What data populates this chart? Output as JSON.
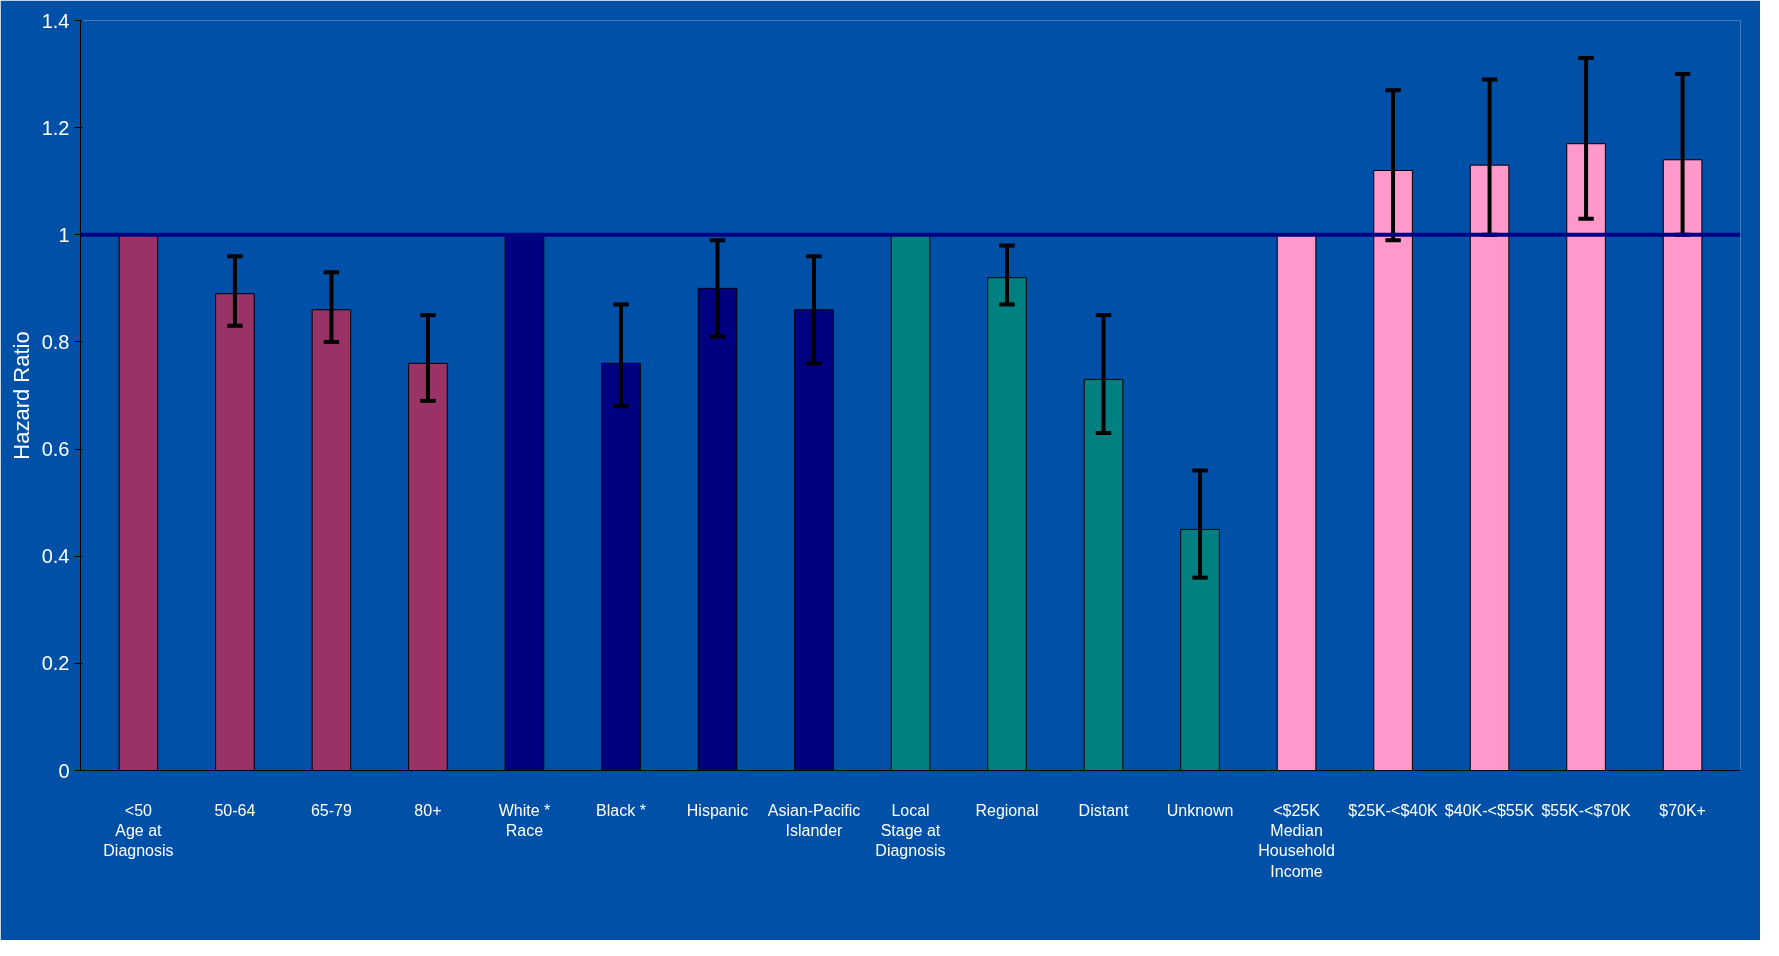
{
  "chart_data": {
    "type": "bar",
    "ylabel": "Hazard Ratio",
    "categories": [
      "<50\nAge at\nDiagnosis",
      "50-64",
      "65-79",
      "80+",
      "White *\nRace",
      "Black *",
      "Hispanic",
      "Asian-Pacific\nIslander",
      "Local\nStage at\nDiagnosis",
      "Regional",
      "Distant",
      "Unknown",
      "<$25K\nMedian\nHousehold\nIncome",
      "$25K-<$40K",
      "$40K-<$55K",
      "$55K-<$70K",
      "$70K+"
    ],
    "values": [
      1,
      0.89,
      0.86,
      0.76,
      1,
      0.76,
      0.9,
      0.86,
      1,
      0.92,
      0.73,
      0.45,
      1,
      1.12,
      1.13,
      1.17,
      1.14
    ],
    "errors": [
      null,
      [
        0.83,
        0.96
      ],
      [
        0.8,
        0.93
      ],
      [
        0.69,
        0.85
      ],
      null,
      [
        0.68,
        0.87
      ],
      [
        0.81,
        0.99
      ],
      [
        0.76,
        0.96
      ],
      null,
      [
        0.87,
        0.98
      ],
      [
        0.63,
        0.85
      ],
      [
        0.36,
        0.56
      ],
      null,
      [
        0.99,
        1.27
      ],
      [
        1.0,
        1.29
      ],
      [
        1.03,
        1.33
      ],
      [
        1.0,
        1.3
      ]
    ],
    "colors": [
      "#993366",
      "#993366",
      "#993366",
      "#993366",
      "#000080",
      "#000080",
      "#000080",
      "#000080",
      "#008080",
      "#008080",
      "#008080",
      "#008080",
      "#ff99cc",
      "#ff99cc",
      "#ff99cc",
      "#ff99cc",
      "#ff99cc"
    ],
    "ylim": [
      0,
      1.4
    ],
    "yticks": [
      0,
      0.2,
      0.4,
      0.6,
      0.8,
      1,
      1.2,
      1.4
    ],
    "ref_lines": [
      {
        "axis": "y",
        "value": 1,
        "color": "#000080"
      }
    ],
    "grid": false
  }
}
